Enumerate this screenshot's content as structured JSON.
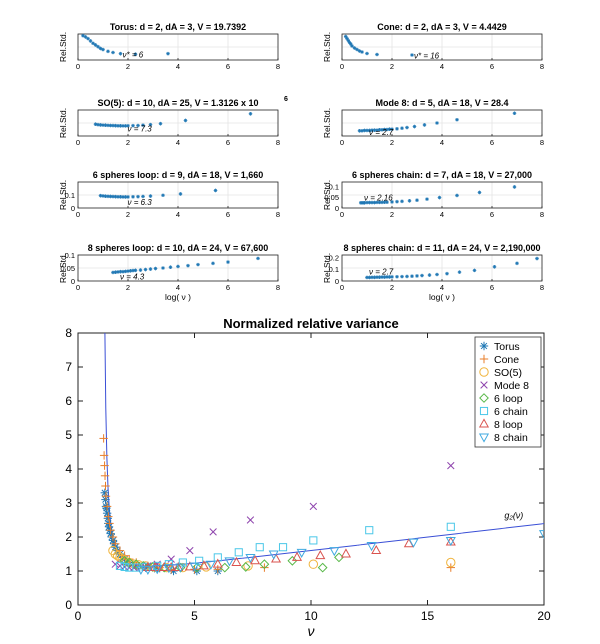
{
  "chart_data": [
    {
      "type": "scatter",
      "title": "Torus: d = 2, dA = 3, V = 19.7392",
      "ylabel": "Rel.Std.",
      "xlabel": "",
      "xlim": [
        0,
        8
      ],
      "ylim": [
        0.035,
        0.08
      ],
      "xticks": [
        "0",
        "2",
        "4",
        "6",
        "8"
      ],
      "yticks": [],
      "grid": true,
      "color": "#1f77b4",
      "annotation": {
        "text": "ν* = 6",
        "x": 1.7,
        "y": 0.043
      },
      "x": [
        0.2,
        0.3,
        0.4,
        0.5,
        0.6,
        0.7,
        0.8,
        0.9,
        1.0,
        1.2,
        1.4,
        1.7,
        2.3,
        3.6
      ],
      "y": [
        0.077,
        0.075,
        0.072,
        0.068,
        0.064,
        0.061,
        0.058,
        0.055,
        0.053,
        0.05,
        0.048,
        0.046,
        0.045,
        0.046
      ]
    },
    {
      "type": "scatter",
      "title": "Cone: d = 2, dA = 3, V = 4.4429",
      "ylabel": "Rel.Std.",
      "xlabel": "",
      "xlim": [
        0,
        8
      ],
      "ylim": [
        0.038,
        0.09
      ],
      "xticks": [
        "0",
        "2",
        "4",
        "6",
        "8"
      ],
      "yticks": [],
      "grid": true,
      "color": "#1f77b4",
      "annotation": {
        "text": "ν* = 16",
        "x": 2.8,
        "y": 0.045
      },
      "x": [
        0.15,
        0.2,
        0.25,
        0.3,
        0.35,
        0.4,
        0.5,
        0.6,
        0.7,
        0.8,
        1.0,
        1.4,
        2.8
      ],
      "y": [
        0.085,
        0.081,
        0.077,
        0.073,
        0.07,
        0.066,
        0.062,
        0.059,
        0.056,
        0.054,
        0.051,
        0.049,
        0.048
      ]
    },
    {
      "type": "scatter",
      "title": "SO(5): d = 10, dA = 25, V = 1.3126 x 10",
      "title_superscript": "6",
      "ylabel": "Rel.Std.",
      "xlabel": "",
      "xlim": [
        0,
        8
      ],
      "ylim": [
        0.05,
        0.6
      ],
      "xticks": [
        "0",
        "2",
        "4",
        "6",
        "8"
      ],
      "yticks": [],
      "grid": true,
      "color": "#1f77b4",
      "annotation": {
        "text": "ν = 7.3",
        "x": 1.9,
        "y": 0.19
      },
      "x": [
        0.7,
        0.8,
        0.9,
        1.0,
        1.1,
        1.2,
        1.3,
        1.4,
        1.5,
        1.6,
        1.7,
        1.8,
        1.9,
        2.0,
        2.2,
        2.4,
        2.6,
        2.9,
        3.3,
        4.3,
        6.9
      ],
      "y": [
        0.3,
        0.29,
        0.285,
        0.28,
        0.278,
        0.275,
        0.272,
        0.27,
        0.268,
        0.266,
        0.265,
        0.264,
        0.264,
        0.265,
        0.268,
        0.272,
        0.28,
        0.29,
        0.31,
        0.38,
        0.52
      ]
    },
    {
      "type": "scatter",
      "title": "Mode 8: d = 5, dA = 18, V = 28.4",
      "ylabel": "Rel.Std.",
      "xlabel": "",
      "xlim": [
        0,
        8
      ],
      "ylim": [
        0,
        0.08
      ],
      "xticks": [
        "0",
        "2",
        "4",
        "6",
        "8"
      ],
      "yticks": [],
      "grid": true,
      "color": "#1f77b4",
      "annotation": {
        "text": "ν = 2.7",
        "x": 1.0,
        "y": 0.008
      },
      "x": [
        0.7,
        0.8,
        0.9,
        1.0,
        1.1,
        1.2,
        1.3,
        1.4,
        1.5,
        1.6,
        1.7,
        1.8,
        1.9,
        2.0,
        2.2,
        2.4,
        2.6,
        2.9,
        3.3,
        3.8,
        4.6,
        6.9
      ],
      "y": [
        0.016,
        0.016,
        0.017,
        0.017,
        0.017,
        0.018,
        0.018,
        0.018,
        0.019,
        0.019,
        0.02,
        0.02,
        0.021,
        0.021,
        0.022,
        0.024,
        0.026,
        0.029,
        0.034,
        0.04,
        0.05,
        0.07
      ]
    },
    {
      "type": "scatter",
      "title": "6 spheres loop: d = 9, dA = 18, V = 1,660",
      "ylabel": "Rel.Std.",
      "xlabel": "",
      "xlim": [
        0,
        8
      ],
      "ylim": [
        0,
        0.2
      ],
      "xticks": [
        "0",
        "2",
        "4",
        "6",
        "8"
      ],
      "yticks": [
        "0",
        "0.1"
      ],
      "grid": true,
      "color": "#1f77b4",
      "annotation": {
        "text": "ν = 6.3",
        "x": 1.9,
        "y": 0.04
      },
      "x": [
        0.9,
        1.0,
        1.1,
        1.2,
        1.3,
        1.4,
        1.5,
        1.6,
        1.7,
        1.8,
        1.9,
        2.0,
        2.2,
        2.4,
        2.6,
        2.9,
        3.4,
        4.1,
        5.5
      ],
      "y": [
        0.095,
        0.093,
        0.091,
        0.09,
        0.089,
        0.088,
        0.087,
        0.086,
        0.086,
        0.085,
        0.085,
        0.085,
        0.086,
        0.087,
        0.089,
        0.092,
        0.098,
        0.108,
        0.135
      ]
    },
    {
      "type": "scatter",
      "title": "6 spheres chain: d = 7, dA = 18, V = 27,000",
      "ylabel": "Rel.Std.",
      "xlabel": "",
      "xlim": [
        0,
        8
      ],
      "ylim": [
        0,
        0.12
      ],
      "xticks": [
        "0",
        "2",
        "4",
        "6",
        "8"
      ],
      "yticks": [
        "0",
        "0.05",
        "0.1"
      ],
      "grid": true,
      "color": "#1f77b4",
      "annotation": {
        "text": "ν = 2.16",
        "x": 0.8,
        "y": 0.045
      },
      "x": [
        0.75,
        0.8,
        0.85,
        0.9,
        1.0,
        1.1,
        1.2,
        1.3,
        1.4,
        1.5,
        1.6,
        1.7,
        1.8,
        2.0,
        2.2,
        2.4,
        2.7,
        3.0,
        3.4,
        3.9,
        4.6,
        5.5,
        6.9
      ],
      "y": [
        0.024,
        0.024,
        0.024,
        0.024,
        0.025,
        0.025,
        0.025,
        0.025,
        0.026,
        0.026,
        0.026,
        0.027,
        0.027,
        0.028,
        0.029,
        0.031,
        0.033,
        0.036,
        0.041,
        0.048,
        0.058,
        0.072,
        0.097
      ]
    },
    {
      "type": "scatter",
      "title": "8 spheres loop: d = 10, dA = 24, V = 67,600",
      "ylabel": "Rel.Std.",
      "xlabel": "log( ν )",
      "xlim": [
        0,
        8
      ],
      "ylim": [
        0,
        0.1
      ],
      "xticks": [
        "0",
        "2",
        "4",
        "6",
        "8"
      ],
      "yticks": [
        "0",
        "0.05",
        "0.1"
      ],
      "grid": true,
      "color": "#1f77b4",
      "annotation": {
        "text": "ν = 4.3",
        "x": 1.6,
        "y": 0.014
      },
      "x": [
        1.4,
        1.5,
        1.6,
        1.7,
        1.8,
        1.9,
        2.0,
        2.1,
        2.2,
        2.3,
        2.5,
        2.7,
        2.9,
        3.1,
        3.4,
        3.7,
        4.0,
        4.4,
        4.8,
        5.4,
        6.0,
        7.2
      ],
      "y": [
        0.033,
        0.034,
        0.035,
        0.036,
        0.036,
        0.037,
        0.038,
        0.039,
        0.04,
        0.041,
        0.042,
        0.044,
        0.046,
        0.048,
        0.05,
        0.053,
        0.056,
        0.059,
        0.063,
        0.068,
        0.073,
        0.087
      ]
    },
    {
      "type": "scatter",
      "title": "8 spheres chain: d = 11, dA = 24, V = 2,190,000",
      "ylabel": "Rel.Std.",
      "xlabel": "log( ν )",
      "xlim": [
        0,
        8
      ],
      "ylim": [
        0,
        0.22
      ],
      "xticks": [
        "0",
        "2",
        "4",
        "6",
        "8"
      ],
      "yticks": [
        "0",
        "0.1",
        "0.2"
      ],
      "grid": true,
      "color": "#1f77b4",
      "annotation": {
        "text": "ν = 2.7",
        "x": 1.0,
        "y": 0.07
      },
      "x": [
        1.0,
        1.1,
        1.2,
        1.3,
        1.4,
        1.5,
        1.6,
        1.7,
        1.8,
        1.9,
        2.0,
        2.2,
        2.4,
        2.6,
        2.8,
        3.0,
        3.2,
        3.5,
        3.8,
        4.2,
        4.7,
        5.3,
        6.1,
        7.0,
        7.8
      ],
      "y": [
        0.03,
        0.03,
        0.031,
        0.031,
        0.032,
        0.032,
        0.033,
        0.033,
        0.034,
        0.034,
        0.035,
        0.036,
        0.037,
        0.039,
        0.041,
        0.043,
        0.046,
        0.05,
        0.055,
        0.062,
        0.075,
        0.09,
        0.12,
        0.15,
        0.19
      ]
    },
    {
      "type": "scatter",
      "title": "Normalized relative variance",
      "xlabel": "ν",
      "ylabel": "",
      "xlim": [
        0,
        20
      ],
      "ylim": [
        0,
        8
      ],
      "xticks": [
        "0",
        "5",
        "10",
        "15",
        "20"
      ],
      "yticks": [
        "0",
        "1",
        "2",
        "3",
        "4",
        "5",
        "6",
        "7",
        "8"
      ],
      "grid": false,
      "legend": "top-right",
      "curve": {
        "name": "g₂(ν)",
        "label": "g₂(ν)",
        "color": "#3a4fd6"
      },
      "series": [
        {
          "name": "Torus",
          "marker": "asterisk",
          "color": "#1f77b4",
          "x": [
            1.15,
            1.18,
            1.2,
            1.22,
            1.25,
            1.28,
            1.3,
            1.33,
            1.36,
            1.4,
            1.45,
            1.5,
            1.55,
            1.6,
            1.7,
            1.8,
            1.9,
            2.0,
            2.2,
            2.5,
            2.9,
            3.4,
            4.1,
            5.1,
            6.0
          ],
          "y": [
            3.3,
            3.1,
            2.9,
            2.85,
            2.7,
            2.55,
            2.4,
            2.3,
            2.2,
            2.1,
            2.0,
            1.9,
            1.8,
            1.7,
            1.6,
            1.5,
            1.4,
            1.35,
            1.25,
            1.15,
            1.1,
            1.05,
            1.0,
            1.0,
            1.0
          ]
        },
        {
          "name": "Cone",
          "marker": "plus",
          "color": "#e87d2a",
          "x": [
            1.1,
            1.12,
            1.14,
            1.16,
            1.18,
            1.2,
            1.25,
            1.3,
            1.35,
            1.4,
            1.5,
            1.6,
            1.8,
            2.0,
            2.2,
            2.5,
            3.0,
            3.5,
            4.0,
            5.0,
            6.0,
            8.0,
            16.0
          ],
          "y": [
            4.9,
            4.4,
            4.1,
            3.8,
            3.5,
            3.2,
            2.9,
            2.6,
            2.4,
            2.2,
            2.0,
            1.8,
            1.6,
            1.45,
            1.35,
            1.25,
            1.15,
            1.1,
            1.05,
            1.05,
            1.05,
            1.1,
            1.1
          ]
        },
        {
          "name": "SO(5)",
          "marker": "circle",
          "color": "#f0b43c",
          "x": [
            1.5,
            1.6,
            1.7,
            1.8,
            1.9,
            2.0,
            2.2,
            2.4,
            2.6,
            2.9,
            3.3,
            3.8,
            4.5,
            5.5,
            7.3,
            10.1,
            16.0
          ],
          "y": [
            1.6,
            1.5,
            1.45,
            1.4,
            1.35,
            1.3,
            1.25,
            1.2,
            1.18,
            1.15,
            1.12,
            1.1,
            1.1,
            1.12,
            1.15,
            1.2,
            1.25
          ]
        },
        {
          "name": "Mode 8",
          "marker": "x",
          "color": "#8e44ad",
          "x": [
            1.6,
            1.8,
            2.0,
            2.2,
            2.4,
            2.7,
            3.0,
            3.4,
            4.0,
            4.8,
            5.8,
            7.4,
            10.1,
            16.0
          ],
          "y": [
            1.2,
            1.15,
            1.12,
            1.1,
            1.1,
            1.12,
            1.15,
            1.2,
            1.35,
            1.6,
            2.15,
            2.5,
            2.9,
            4.1
          ]
        },
        {
          "name": "6 loop",
          "marker": "diamond",
          "color": "#58b848",
          "x": [
            2.0,
            2.2,
            2.5,
            2.8,
            3.2,
            3.7,
            4.4,
            5.1,
            6.3,
            7.2,
            8.0,
            9.2,
            10.5,
            11.2
          ],
          "y": [
            1.3,
            1.25,
            1.2,
            1.15,
            1.12,
            1.1,
            1.1,
            1.1,
            1.1,
            1.12,
            1.2,
            1.3,
            1.1,
            1.4
          ]
        },
        {
          "name": "6 chain",
          "marker": "square",
          "color": "#4ac7e8",
          "x": [
            1.8,
            2.0,
            2.2,
            2.5,
            2.9,
            3.4,
            3.9,
            4.5,
            5.2,
            6.0,
            6.9,
            7.8,
            8.8,
            10.1,
            12.5,
            16.0
          ],
          "y": [
            1.15,
            1.12,
            1.1,
            1.1,
            1.12,
            1.15,
            1.2,
            1.25,
            1.3,
            1.4,
            1.55,
            1.7,
            1.7,
            1.9,
            2.2,
            2.3
          ]
        },
        {
          "name": "8 loop",
          "marker": "triangle-up",
          "color": "#d9534f",
          "x": [
            3.0,
            3.3,
            3.7,
            4.0,
            4.3,
            4.8,
            5.4,
            6.0,
            6.8,
            7.6,
            8.5,
            9.4,
            10.4,
            11.5,
            12.8,
            14.2,
            16.0
          ],
          "y": [
            1.1,
            1.1,
            1.1,
            1.1,
            1.1,
            1.12,
            1.15,
            1.2,
            1.25,
            1.3,
            1.35,
            1.4,
            1.45,
            1.5,
            1.6,
            1.8,
            1.85
          ]
        },
        {
          "name": "8 chain",
          "marker": "triangle-down",
          "color": "#3fa9e0",
          "x": [
            2.7,
            3.0,
            3.4,
            3.9,
            4.4,
            5.0,
            5.7,
            6.5,
            7.4,
            8.4,
            9.6,
            11.0,
            12.6,
            14.4,
            16.0,
            20.0
          ],
          "y": [
            1.05,
            1.05,
            1.07,
            1.1,
            1.12,
            1.15,
            1.2,
            1.3,
            1.4,
            1.5,
            1.55,
            1.6,
            1.75,
            1.85,
            1.9,
            2.1
          ]
        }
      ]
    }
  ]
}
